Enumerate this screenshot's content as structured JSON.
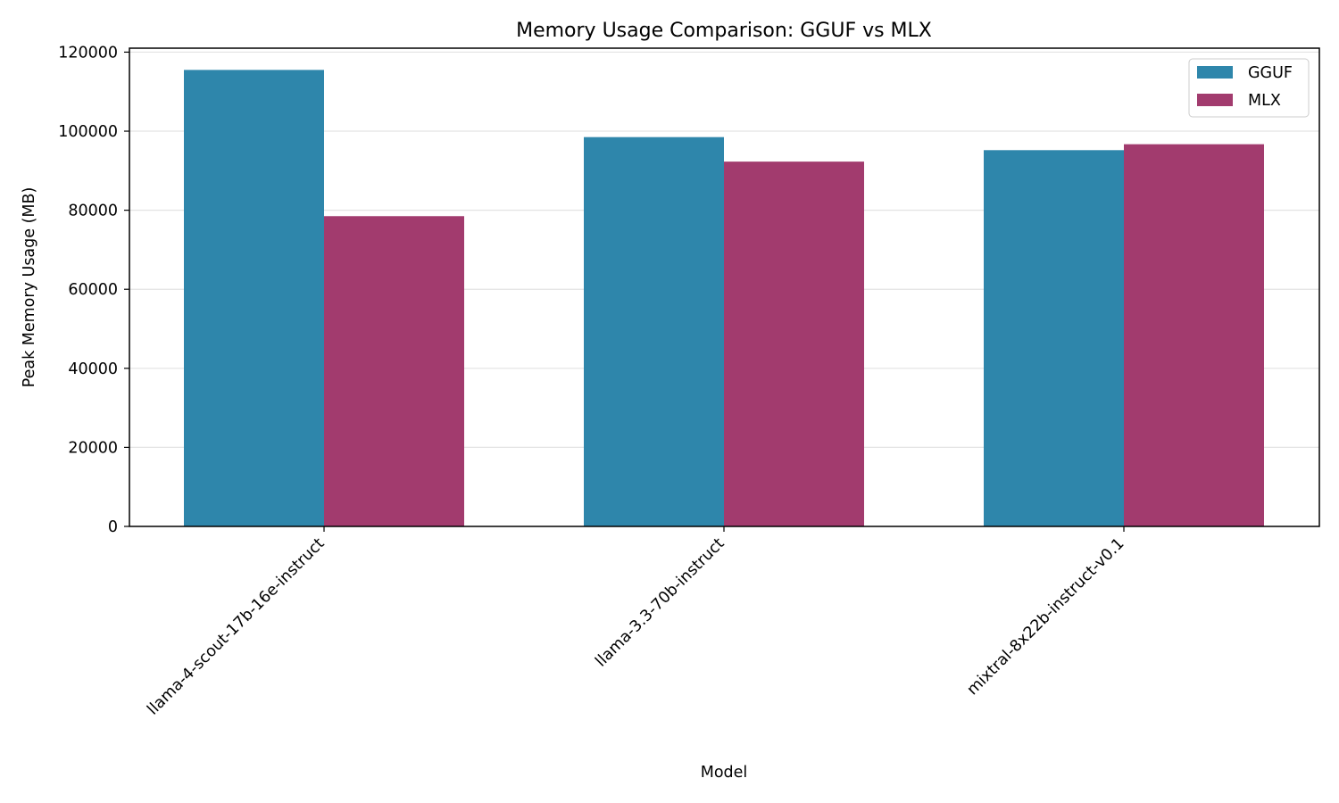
{
  "chart_data": {
    "type": "bar",
    "title": "Memory Usage Comparison: GGUF vs MLX",
    "xlabel": "Model",
    "ylabel": "Peak Memory Usage (MB)",
    "categories": [
      "llama-4-scout-17b-16e-instruct",
      "llama-3.3-70b-instruct",
      "mixtral-8x22b-instruct-v0.1"
    ],
    "series": [
      {
        "name": "GGUF",
        "values": [
          115500,
          98500,
          95200
        ],
        "color": "#2e86ab"
      },
      {
        "name": "MLX",
        "values": [
          78500,
          92300,
          96700
        ],
        "color": "#a23b6e"
      }
    ],
    "ylim": [
      0,
      121000
    ],
    "yticks": [
      0,
      20000,
      40000,
      60000,
      80000,
      100000,
      120000
    ],
    "grid": "y",
    "legend_position": "top-right"
  }
}
